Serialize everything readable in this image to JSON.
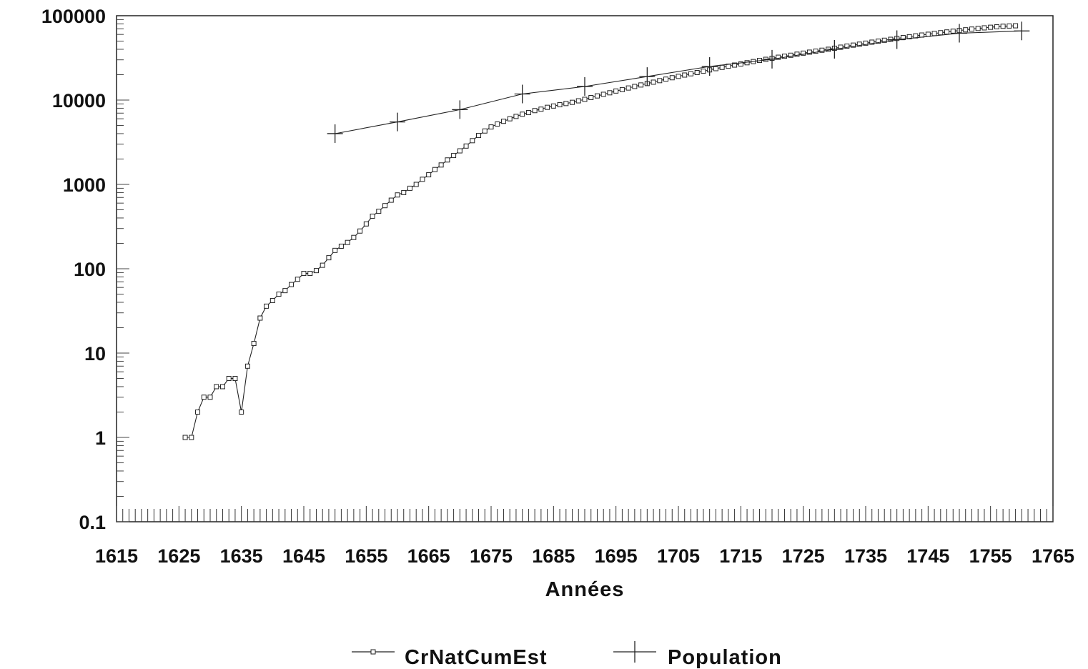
{
  "chart_data": {
    "type": "line",
    "title": "",
    "xlabel": "Années",
    "ylabel": "",
    "yscale": "log",
    "xlim": [
      1615,
      1765
    ],
    "ylim": [
      0.1,
      100000
    ],
    "x_ticks": [
      "1615",
      "1625",
      "1635",
      "1645",
      "1655",
      "1665",
      "1675",
      "1685",
      "1695",
      "1705",
      "1715",
      "1725",
      "1735",
      "1745",
      "1755",
      "1765"
    ],
    "y_ticks": [
      "0.1",
      "1",
      "10",
      "100",
      "1000",
      "10000",
      "100000"
    ],
    "grid": false,
    "legend_position": "bottom",
    "series": [
      {
        "name": "CrNatCumEst",
        "marker": "square",
        "x": [
          1626,
          1627,
          1628,
          1629,
          1630,
          1631,
          1632,
          1633,
          1634,
          1635,
          1636,
          1637,
          1638,
          1639,
          1640,
          1641,
          1642,
          1643,
          1644,
          1645,
          1646,
          1647,
          1648,
          1649,
          1650,
          1651,
          1652,
          1653,
          1654,
          1655,
          1656,
          1657,
          1658,
          1659,
          1660,
          1661,
          1662,
          1663,
          1664,
          1665,
          1666,
          1667,
          1668,
          1669,
          1670,
          1671,
          1672,
          1673,
          1674,
          1675,
          1676,
          1677,
          1678,
          1679,
          1680,
          1681,
          1682,
          1683,
          1684,
          1685,
          1686,
          1687,
          1688,
          1689,
          1690,
          1691,
          1692,
          1693,
          1694,
          1695,
          1696,
          1697,
          1698,
          1699,
          1700,
          1701,
          1702,
          1703,
          1704,
          1705,
          1706,
          1707,
          1708,
          1709,
          1710,
          1711,
          1712,
          1713,
          1714,
          1715,
          1716,
          1717,
          1718,
          1719,
          1720,
          1721,
          1722,
          1723,
          1724,
          1725,
          1726,
          1727,
          1728,
          1729,
          1730,
          1731,
          1732,
          1733,
          1734,
          1735,
          1736,
          1737,
          1738,
          1739,
          1740,
          1741,
          1742,
          1743,
          1744,
          1745,
          1746,
          1747,
          1748,
          1749,
          1750,
          1751,
          1752,
          1753,
          1754,
          1755,
          1756,
          1757,
          1758,
          1759
        ],
        "values": [
          1,
          1,
          2,
          3,
          3,
          4,
          4,
          5,
          5,
          2,
          7,
          13,
          26,
          36,
          42,
          50,
          55,
          65,
          75,
          88,
          88,
          95,
          110,
          135,
          165,
          185,
          205,
          235,
          280,
          340,
          420,
          480,
          560,
          650,
          750,
          800,
          900,
          1000,
          1150,
          1300,
          1500,
          1700,
          1950,
          2200,
          2500,
          2850,
          3300,
          3800,
          4300,
          4800,
          5200,
          5600,
          6000,
          6400,
          6800,
          7100,
          7500,
          7800,
          8200,
          8500,
          8800,
          9100,
          9400,
          9800,
          10200,
          10700,
          11200,
          11700,
          12200,
          12800,
          13300,
          13900,
          14500,
          15100,
          15700,
          16300,
          17000,
          17700,
          18400,
          19100,
          19800,
          20500,
          21200,
          22000,
          22800,
          23600,
          24400,
          25200,
          26000,
          26800,
          27700,
          28600,
          29500,
          30400,
          31300,
          32200,
          33100,
          34000,
          35000,
          36000,
          37000,
          38000,
          39000,
          40000,
          41200,
          42400,
          43600,
          44800,
          46000,
          47300,
          48600,
          49900,
          51200,
          52500,
          53800,
          55100,
          56400,
          57700,
          59000,
          60300,
          61600,
          62900,
          64200,
          65500,
          66800,
          68100,
          69400,
          70600,
          71800,
          73000,
          74000,
          75000,
          75500,
          76000
        ]
      },
      {
        "name": "Population",
        "marker": "cross",
        "x": [
          1650,
          1660,
          1670,
          1680,
          1690,
          1700,
          1710,
          1720,
          1730,
          1740,
          1750,
          1760
        ],
        "values": [
          4000,
          5500,
          7700,
          11800,
          14500,
          19000,
          25000,
          30500,
          40000,
          52000,
          62000,
          66000
        ]
      }
    ]
  }
}
